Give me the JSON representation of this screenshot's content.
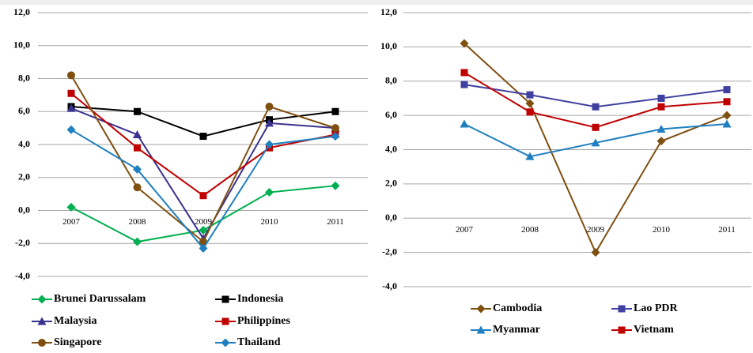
{
  "chart_data": [
    {
      "type": "line",
      "categories": [
        "2007",
        "2008",
        "2009",
        "2010",
        "2011"
      ],
      "ylim": [
        -4,
        12
      ],
      "yticks": [
        {
          "value": -4,
          "label": "-4,0"
        },
        {
          "value": -2,
          "label": "-2,0"
        },
        {
          "value": 0,
          "label": "0,0"
        },
        {
          "value": 2,
          "label": "2,0"
        },
        {
          "value": 4,
          "label": "4,0"
        },
        {
          "value": 6,
          "label": "6,0"
        },
        {
          "value": 8,
          "label": "8,0"
        },
        {
          "value": 10,
          "label": "10,0"
        },
        {
          "value": 12,
          "label": "12,0"
        }
      ],
      "grid": true,
      "legend": "bottom",
      "series": [
        {
          "name": "Brunei Darussalam",
          "color": "#00b050",
          "marker": "diamond",
          "values": [
            0.2,
            -1.9,
            -1.2,
            1.1,
            1.5
          ]
        },
        {
          "name": "Indonesia",
          "color": "#000000",
          "marker": "square",
          "values": [
            6.3,
            6.0,
            4.5,
            5.5,
            6.0
          ]
        },
        {
          "name": "Malaysia",
          "color": "#3a3290",
          "marker": "triangle",
          "values": [
            6.2,
            4.6,
            -1.7,
            5.3,
            5.0
          ]
        },
        {
          "name": "Philippines",
          "color": "#c00000",
          "marker": "square",
          "values": [
            7.1,
            3.8,
            0.9,
            3.8,
            4.6
          ]
        },
        {
          "name": "Singapore",
          "color": "#7f4f10",
          "marker": "circle",
          "values": [
            8.2,
            1.4,
            -1.9,
            6.3,
            5.0
          ]
        },
        {
          "name": "Thailand",
          "color": "#1f7fc0",
          "marker": "diamond",
          "values": [
            4.9,
            2.5,
            -2.3,
            4.0,
            4.5
          ]
        }
      ]
    },
    {
      "type": "line",
      "categories": [
        "2007",
        "2008",
        "2009",
        "2010",
        "2011"
      ],
      "ylim": [
        -4,
        12
      ],
      "yticks": [
        {
          "value": -4,
          "label": "-4,0"
        },
        {
          "value": -2,
          "label": "-2,0"
        },
        {
          "value": 0,
          "label": "0,0"
        },
        {
          "value": 2,
          "label": "2,0"
        },
        {
          "value": 4,
          "label": "4,0"
        },
        {
          "value": 6,
          "label": "6,0"
        },
        {
          "value": 8,
          "label": "8,0"
        },
        {
          "value": 10,
          "label": "10,0"
        },
        {
          "value": 12,
          "label": "12,0"
        }
      ],
      "grid": true,
      "legend": "bottom",
      "series": [
        {
          "name": "Cambodia",
          "color": "#7f4f10",
          "marker": "diamond",
          "values": [
            10.2,
            6.7,
            -2.0,
            4.5,
            6.0
          ]
        },
        {
          "name": "Lao PDR",
          "color": "#4040a0",
          "marker": "square",
          "values": [
            7.8,
            7.2,
            6.5,
            7.0,
            7.5
          ]
        },
        {
          "name": "Myanmar",
          "color": "#1f7fc0",
          "marker": "triangle",
          "values": [
            5.5,
            3.6,
            4.4,
            5.2,
            5.5
          ]
        },
        {
          "name": "Vietnam",
          "color": "#c00000",
          "marker": "square",
          "values": [
            8.5,
            6.2,
            5.3,
            6.5,
            6.8
          ]
        }
      ]
    }
  ]
}
